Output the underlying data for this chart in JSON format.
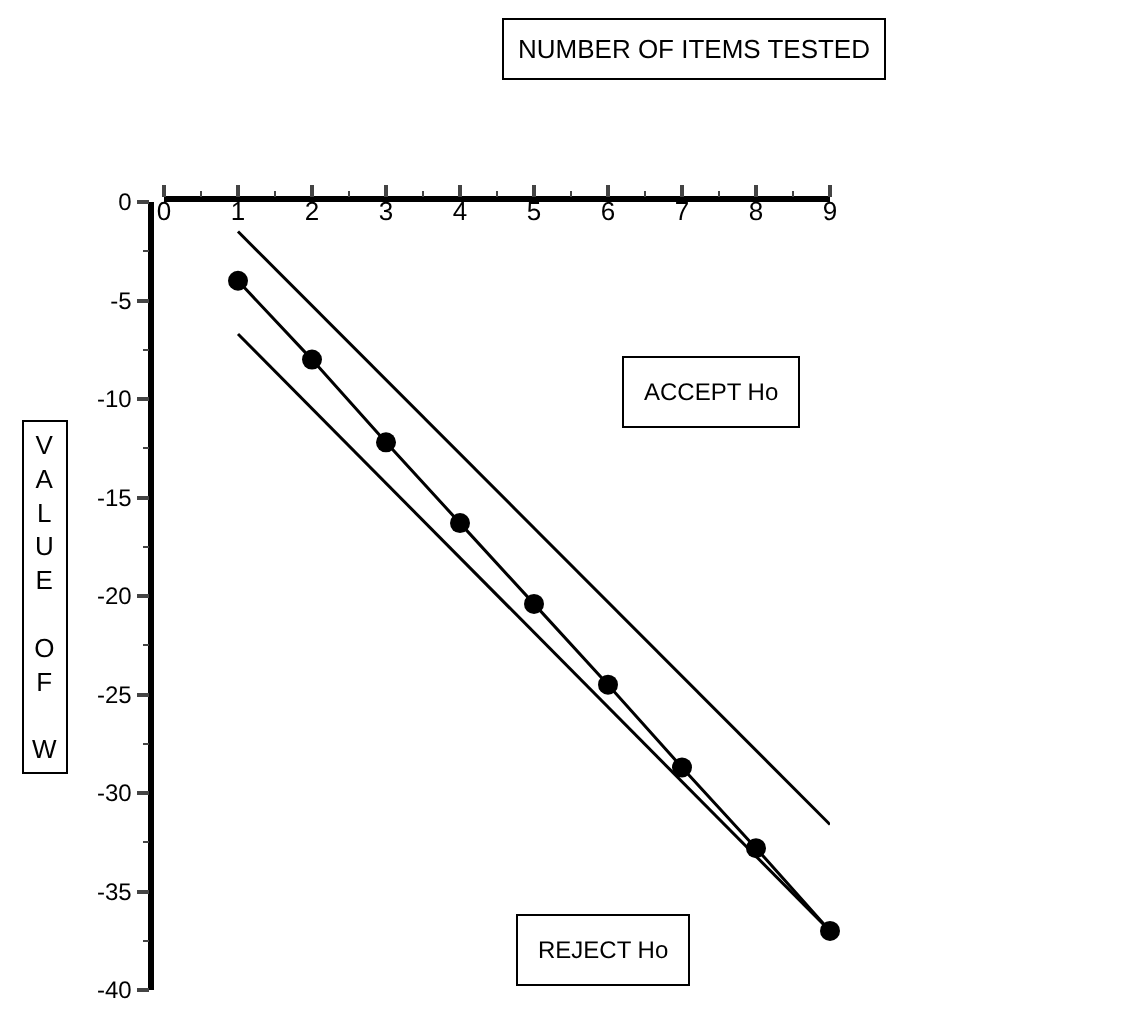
{
  "chart_data": {
    "type": "line",
    "xlabel": "NUMBER OF ITEMS TESTED",
    "ylabel": "VALUE OF W",
    "series": [
      {
        "color": "#000000",
        "marker": "none",
        "x": [
          1,
          9
        ],
        "values": [
          -1.5,
          -31.6
        ]
      },
      {
        "color": "#000000",
        "marker": "circle",
        "x": [
          1,
          2,
          3,
          4,
          5,
          6,
          7,
          8,
          9
        ],
        "values": [
          -4,
          -8,
          -12.2,
          -16.3,
          -20.4,
          -24.5,
          -28.7,
          -32.8,
          -37
        ]
      },
      {
        "color": "#000000",
        "marker": "none",
        "x": [
          1,
          9
        ],
        "values": [
          -6.7,
          -37
        ]
      }
    ],
    "annotations": [
      "ACCEPT Ho",
      "REJECT Ho"
    ],
    "xlim": [
      0,
      9
    ],
    "xticks": [
      0,
      1,
      2,
      3,
      4,
      5,
      6,
      7,
      8,
      9
    ],
    "ylim": [
      -40,
      0
    ],
    "yticks": [
      0,
      -5,
      -10,
      -15,
      -20,
      -25,
      -30,
      -35,
      -40
    ]
  }
}
